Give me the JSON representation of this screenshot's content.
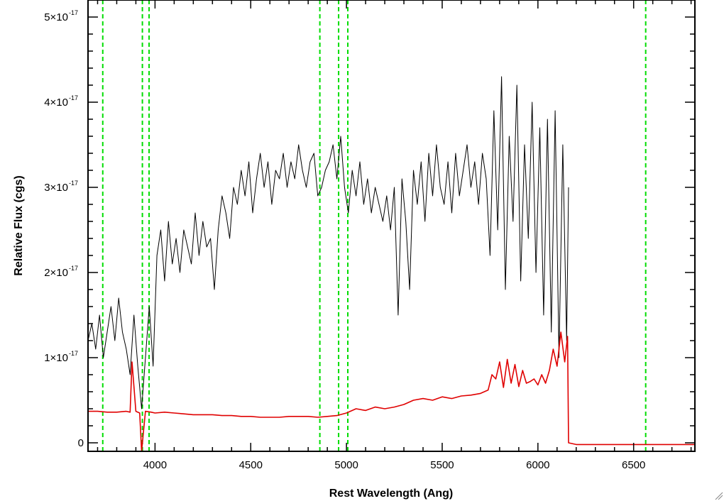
{
  "chart_data": {
    "type": "line",
    "xlabel": "Rest Wavelength (Ang)",
    "ylabel": "Relative Flux (cgs)",
    "xlim": [
      3650,
      6820
    ],
    "ylim": [
      -1e-18,
      5.2e-17
    ],
    "x_ticks": [
      4000,
      4500,
      5000,
      5500,
      6000,
      6500
    ],
    "x_tick_labels": [
      "4000",
      "4500",
      "5000",
      "5500",
      "6000",
      "6500"
    ],
    "x_minor_step": 100,
    "y_ticks": [
      {
        "value": 0,
        "mantissa": "0",
        "exponent": ""
      },
      {
        "value": 1e-17,
        "mantissa": "1×10",
        "exponent": "-17"
      },
      {
        "value": 2e-17,
        "mantissa": "2×10",
        "exponent": "-17"
      },
      {
        "value": 3e-17,
        "mantissa": "3×10",
        "exponent": "-17"
      },
      {
        "value": 4e-17,
        "mantissa": "4×10",
        "exponent": "-17"
      },
      {
        "value": 5e-17,
        "mantissa": "5×10",
        "exponent": "-17"
      }
    ],
    "y_minor_step": 2e-18,
    "reference_lines": {
      "color": "#00dd00",
      "style": "dashed",
      "x": [
        3727,
        3934,
        3969,
        4861,
        4959,
        5007,
        6563
      ]
    },
    "series": [
      {
        "color": "#000000",
        "x": [
          3650,
          3670,
          3690,
          3710,
          3730,
          3750,
          3770,
          3790,
          3810,
          3830,
          3850,
          3870,
          3890,
          3910,
          3930,
          3950,
          3970,
          3990,
          4010,
          4030,
          4050,
          4070,
          4090,
          4110,
          4130,
          4150,
          4170,
          4190,
          4210,
          4230,
          4250,
          4270,
          4290,
          4310,
          4330,
          4350,
          4370,
          4390,
          4410,
          4430,
          4450,
          4470,
          4490,
          4510,
          4530,
          4550,
          4570,
          4590,
          4610,
          4630,
          4650,
          4670,
          4690,
          4710,
          4730,
          4750,
          4770,
          4790,
          4810,
          4830,
          4850,
          4870,
          4890,
          4910,
          4930,
          4950,
          4970,
          4990,
          5010,
          5030,
          5050,
          5070,
          5090,
          5110,
          5130,
          5150,
          5170,
          5190,
          5210,
          5230,
          5250,
          5270,
          5290,
          5310,
          5330,
          5350,
          5370,
          5390,
          5410,
          5430,
          5450,
          5470,
          5490,
          5510,
          5530,
          5550,
          5570,
          5590,
          5610,
          5630,
          5650,
          5670,
          5690,
          5710,
          5730,
          5750,
          5770,
          5790,
          5810,
          5830,
          5850,
          5870,
          5890,
          5910,
          5930,
          5950,
          5970,
          5990,
          6010,
          6030,
          6050,
          6070,
          6090,
          6110,
          6130,
          6150,
          6160
        ],
        "y": [
          1.2e-17,
          1.4e-17,
          1.1e-17,
          1.5e-17,
          1e-17,
          1.3e-17,
          1.6e-17,
          1.2e-17,
          1.7e-17,
          1.3e-17,
          1.1e-17,
          8e-18,
          1.5e-17,
          9e-18,
          4e-18,
          1e-17,
          1.6e-17,
          9e-18,
          2.2e-17,
          2.5e-17,
          1.9e-17,
          2.6e-17,
          2.1e-17,
          2.4e-17,
          2e-17,
          2.5e-17,
          2.3e-17,
          2.1e-17,
          2.7e-17,
          2.2e-17,
          2.6e-17,
          2.3e-17,
          2.4e-17,
          1.8e-17,
          2.5e-17,
          2.9e-17,
          2.7e-17,
          2.4e-17,
          3e-17,
          2.8e-17,
          3.2e-17,
          2.9e-17,
          3.3e-17,
          2.7e-17,
          3.1e-17,
          3.4e-17,
          3e-17,
          3.3e-17,
          2.8e-17,
          3.2e-17,
          3.1e-17,
          3.4e-17,
          3e-17,
          3.3e-17,
          3.1e-17,
          3.5e-17,
          3.2e-17,
          3e-17,
          3.3e-17,
          3.4e-17,
          2.9e-17,
          3e-17,
          3.2e-17,
          3.3e-17,
          3.5e-17,
          3.1e-17,
          3.6e-17,
          3e-17,
          2.7e-17,
          3.2e-17,
          2.9e-17,
          3.3e-17,
          2.8e-17,
          3.1e-17,
          2.7e-17,
          3e-17,
          2.8e-17,
          2.6e-17,
          2.9e-17,
          2.5e-17,
          3e-17,
          1.5e-17,
          3.1e-17,
          2.6e-17,
          1.8e-17,
          3.2e-17,
          2.8e-17,
          3.3e-17,
          2.6e-17,
          3.4e-17,
          2.9e-17,
          3.5e-17,
          3e-17,
          2.8e-17,
          3.3e-17,
          2.7e-17,
          3.4e-17,
          2.9e-17,
          3.2e-17,
          3.5e-17,
          3e-17,
          3.3e-17,
          2.8e-17,
          3.4e-17,
          3.1e-17,
          2.2e-17,
          3.9e-17,
          2.5e-17,
          4.3e-17,
          1.8e-17,
          3.6e-17,
          2.6e-17,
          4.2e-17,
          1.9e-17,
          3.5e-17,
          2.4e-17,
          4e-17,
          2e-17,
          3.7e-17,
          1.5e-17,
          3.8e-17,
          1.3e-17,
          3.9e-17,
          1e-17,
          3.5e-17,
          1.2e-17,
          3e-17
        ]
      },
      {
        "color": "#e00000",
        "x": [
          3650,
          3700,
          3750,
          3800,
          3850,
          3870,
          3880,
          3900,
          3920,
          3930,
          3950,
          3980,
          4000,
          4050,
          4100,
          4150,
          4200,
          4250,
          4300,
          4350,
          4400,
          4450,
          4500,
          4550,
          4600,
          4650,
          4700,
          4750,
          4800,
          4850,
          4900,
          4950,
          5000,
          5050,
          5100,
          5150,
          5200,
          5250,
          5300,
          5350,
          5400,
          5450,
          5500,
          5550,
          5600,
          5650,
          5700,
          5740,
          5760,
          5780,
          5800,
          5820,
          5840,
          5860,
          5880,
          5900,
          5920,
          5940,
          5960,
          5980,
          6000,
          6020,
          6040,
          6060,
          6080,
          6100,
          6120,
          6140,
          6155,
          6160,
          6200,
          6300,
          6400,
          6500,
          6600,
          6700,
          6820
        ],
        "y": [
          3.7e-18,
          3.7e-18,
          3.6e-18,
          3.6e-18,
          3.7e-18,
          3.6e-18,
          9.5e-18,
          3.7e-18,
          3.5e-18,
          -1e-18,
          3.7e-18,
          3.6e-18,
          3.5e-18,
          3.6e-18,
          3.5e-18,
          3.4e-18,
          3.3e-18,
          3.3e-18,
          3.3e-18,
          3.2e-18,
          3.2e-18,
          3.1e-18,
          3.1e-18,
          3e-18,
          3e-18,
          3e-18,
          3.1e-18,
          3.1e-18,
          3.1e-18,
          3e-18,
          3.1e-18,
          3.2e-18,
          3.5e-18,
          4e-18,
          3.8e-18,
          4.2e-18,
          4e-18,
          4.2e-18,
          4.5e-18,
          5e-18,
          5.2e-18,
          5e-18,
          5.4e-18,
          5.2e-18,
          5.5e-18,
          5.6e-18,
          5.8e-18,
          6.2e-18,
          8e-18,
          7.5e-18,
          9.5e-18,
          6.5e-18,
          9.8e-18,
          7e-18,
          9.2e-18,
          6.6e-18,
          8.5e-18,
          7e-18,
          7.2e-18,
          7.5e-18,
          6.8e-18,
          8e-18,
          7e-18,
          8.5e-18,
          1.1e-17,
          9e-18,
          1.3e-17,
          9.5e-18,
          1.25e-17,
          0.0,
          -2e-19,
          -2e-19,
          -2e-19,
          -2e-19,
          -2e-19,
          -2e-19,
          -2e-19
        ]
      }
    ]
  }
}
